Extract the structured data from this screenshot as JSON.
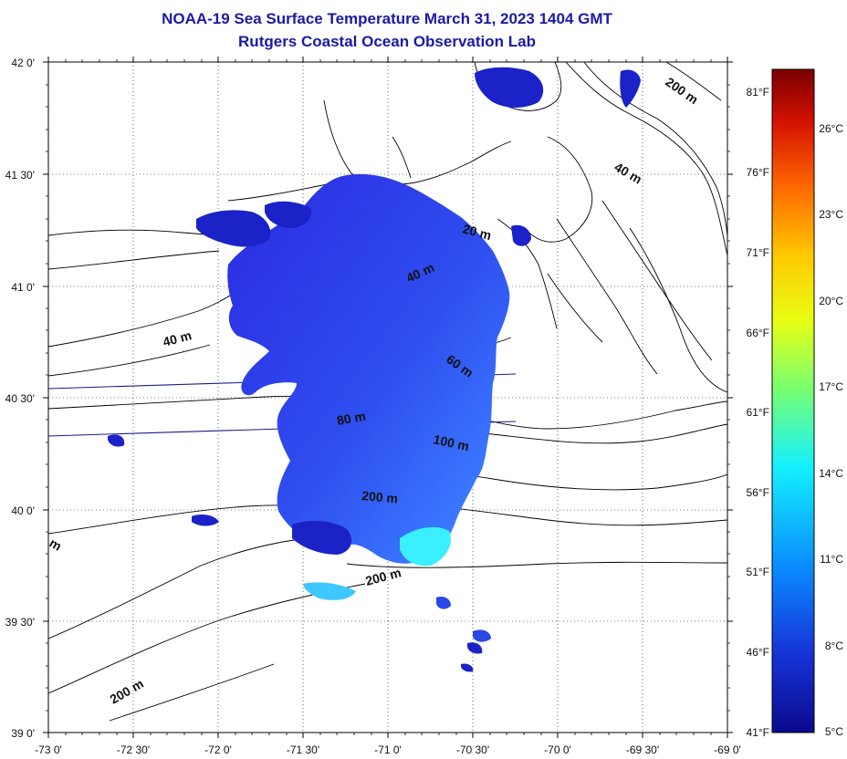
{
  "title": {
    "line1": "NOAA-19 Sea Surface Temperature March 31, 2023 1404 GMT",
    "line2": "Rutgers Coastal Ocean Observation Lab"
  },
  "map": {
    "lat_labels": [
      "42 0'",
      "41 30'",
      "41 0'",
      "40 30'",
      "40 0'",
      "39 30'",
      "39 0'"
    ],
    "lon_labels": [
      "-73 0'",
      "-72 30'",
      "-72 0'",
      "-71 30'",
      "-71 0'",
      "-70 30'",
      "-70 0'",
      "-69 30'",
      "-69 0'"
    ],
    "contour_labels": [
      "200 m",
      "40 m",
      "20 m",
      "40 m",
      "40 m",
      "60 m",
      "80 m",
      "100 m",
      "200 m",
      "200 m",
      "200 m",
      "m"
    ]
  },
  "colorbar": {
    "fahrenheit": [
      "81°F",
      "76°F",
      "71°F",
      "66°F",
      "61°F",
      "56°F",
      "51°F",
      "46°F",
      "41°F"
    ],
    "celsius": [
      "26°C",
      "23°C",
      "20°C",
      "17°C",
      "14°C",
      "11°C",
      "8°C",
      "5°C"
    ],
    "colors": [
      "#7a0000",
      "#d41200",
      "#ff6a00",
      "#ffc800",
      "#e8ff14",
      "#7aff6e",
      "#14f0ff",
      "#0a8cff",
      "#1634d8",
      "#0a0a8c"
    ]
  }
}
